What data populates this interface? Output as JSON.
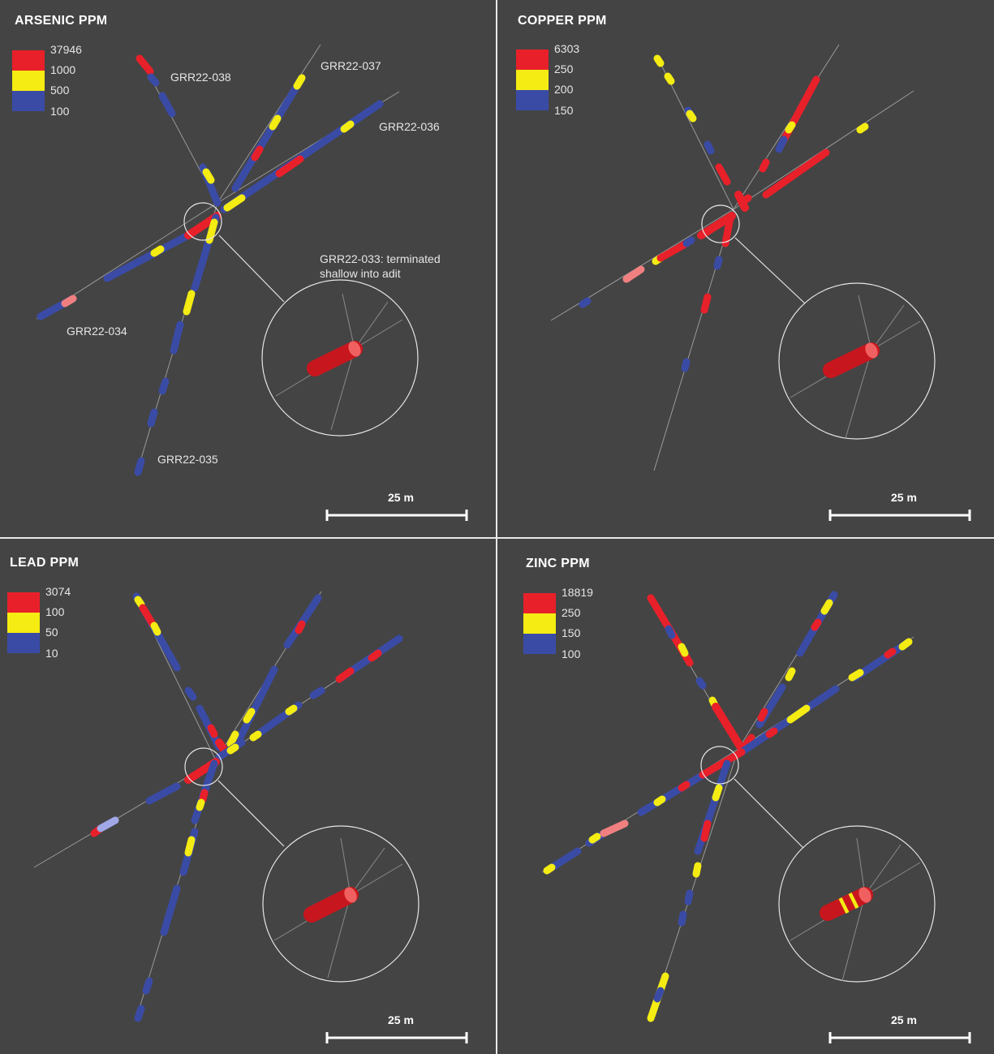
{
  "colors": {
    "background": "#444444",
    "high": "#e8202a",
    "mid": "#f4ec12",
    "low": "#3a4ba6",
    "trace": "#9a9a9a",
    "text": "#ffffff"
  },
  "scale_bar_label": "25 m",
  "panels": [
    {
      "id": "arsenic",
      "title": "ARSENIC PPM",
      "legend": [
        "37946",
        "1000",
        "500",
        "100"
      ],
      "hole_labels": {
        "h038": "GRR22-038",
        "h037": "GRR22-037",
        "h036": "GRR22-036",
        "h034": "GRR22-034",
        "h035": "GRR22-035"
      },
      "note": "GRR22-033: terminated shallow into adit"
    },
    {
      "id": "copper",
      "title": "COPPER PPM",
      "legend": [
        "6303",
        "250",
        "200",
        "150"
      ]
    },
    {
      "id": "lead",
      "title": "LEAD PPM",
      "legend": [
        "3074",
        "100",
        "50",
        "10"
      ]
    },
    {
      "id": "zinc",
      "title": "ZINC PPM",
      "legend": [
        "18819",
        "250",
        "150",
        "100"
      ]
    }
  ]
}
